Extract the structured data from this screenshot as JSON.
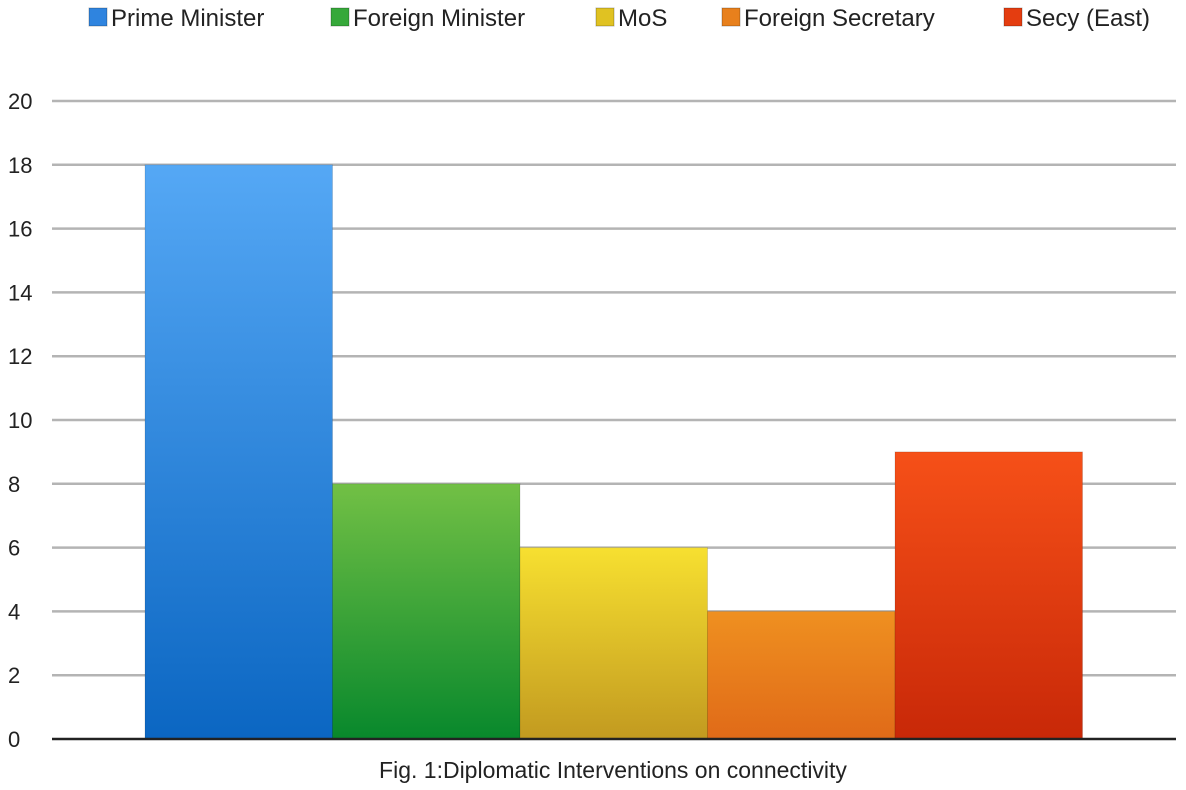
{
  "chart_data": {
    "type": "bar",
    "caption": "Fig. 1:Diplomatic Interventions on connectivity",
    "ylim": [
      0,
      20
    ],
    "y_ticks": [
      0,
      2,
      4,
      6,
      8,
      10,
      12,
      14,
      16,
      18,
      20
    ],
    "grid": true,
    "legend_position": "top",
    "series": [
      {
        "name": "Prime Minister",
        "value": 18,
        "color_top": "#55a8f5",
        "color_bottom": "#0b66c2",
        "legend_color": "#2f84df"
      },
      {
        "name": "Foreign Minister",
        "value": 8,
        "color_top": "#72c045",
        "color_bottom": "#08882c",
        "legend_color": "#36a83a"
      },
      {
        "name": "MoS",
        "value": 6,
        "color_top": "#f7e030",
        "color_bottom": "#c29a20",
        "legend_color": "#e0c222"
      },
      {
        "name": "Foreign Secretary",
        "value": 4,
        "color_top": "#ef9020",
        "color_bottom": "#e06a18",
        "legend_color": "#e8801c"
      },
      {
        "name": "Secy (East)",
        "value": 9,
        "color_top": "#f65018",
        "color_bottom": "#c82808",
        "legend_color": "#e43d10"
      }
    ]
  }
}
